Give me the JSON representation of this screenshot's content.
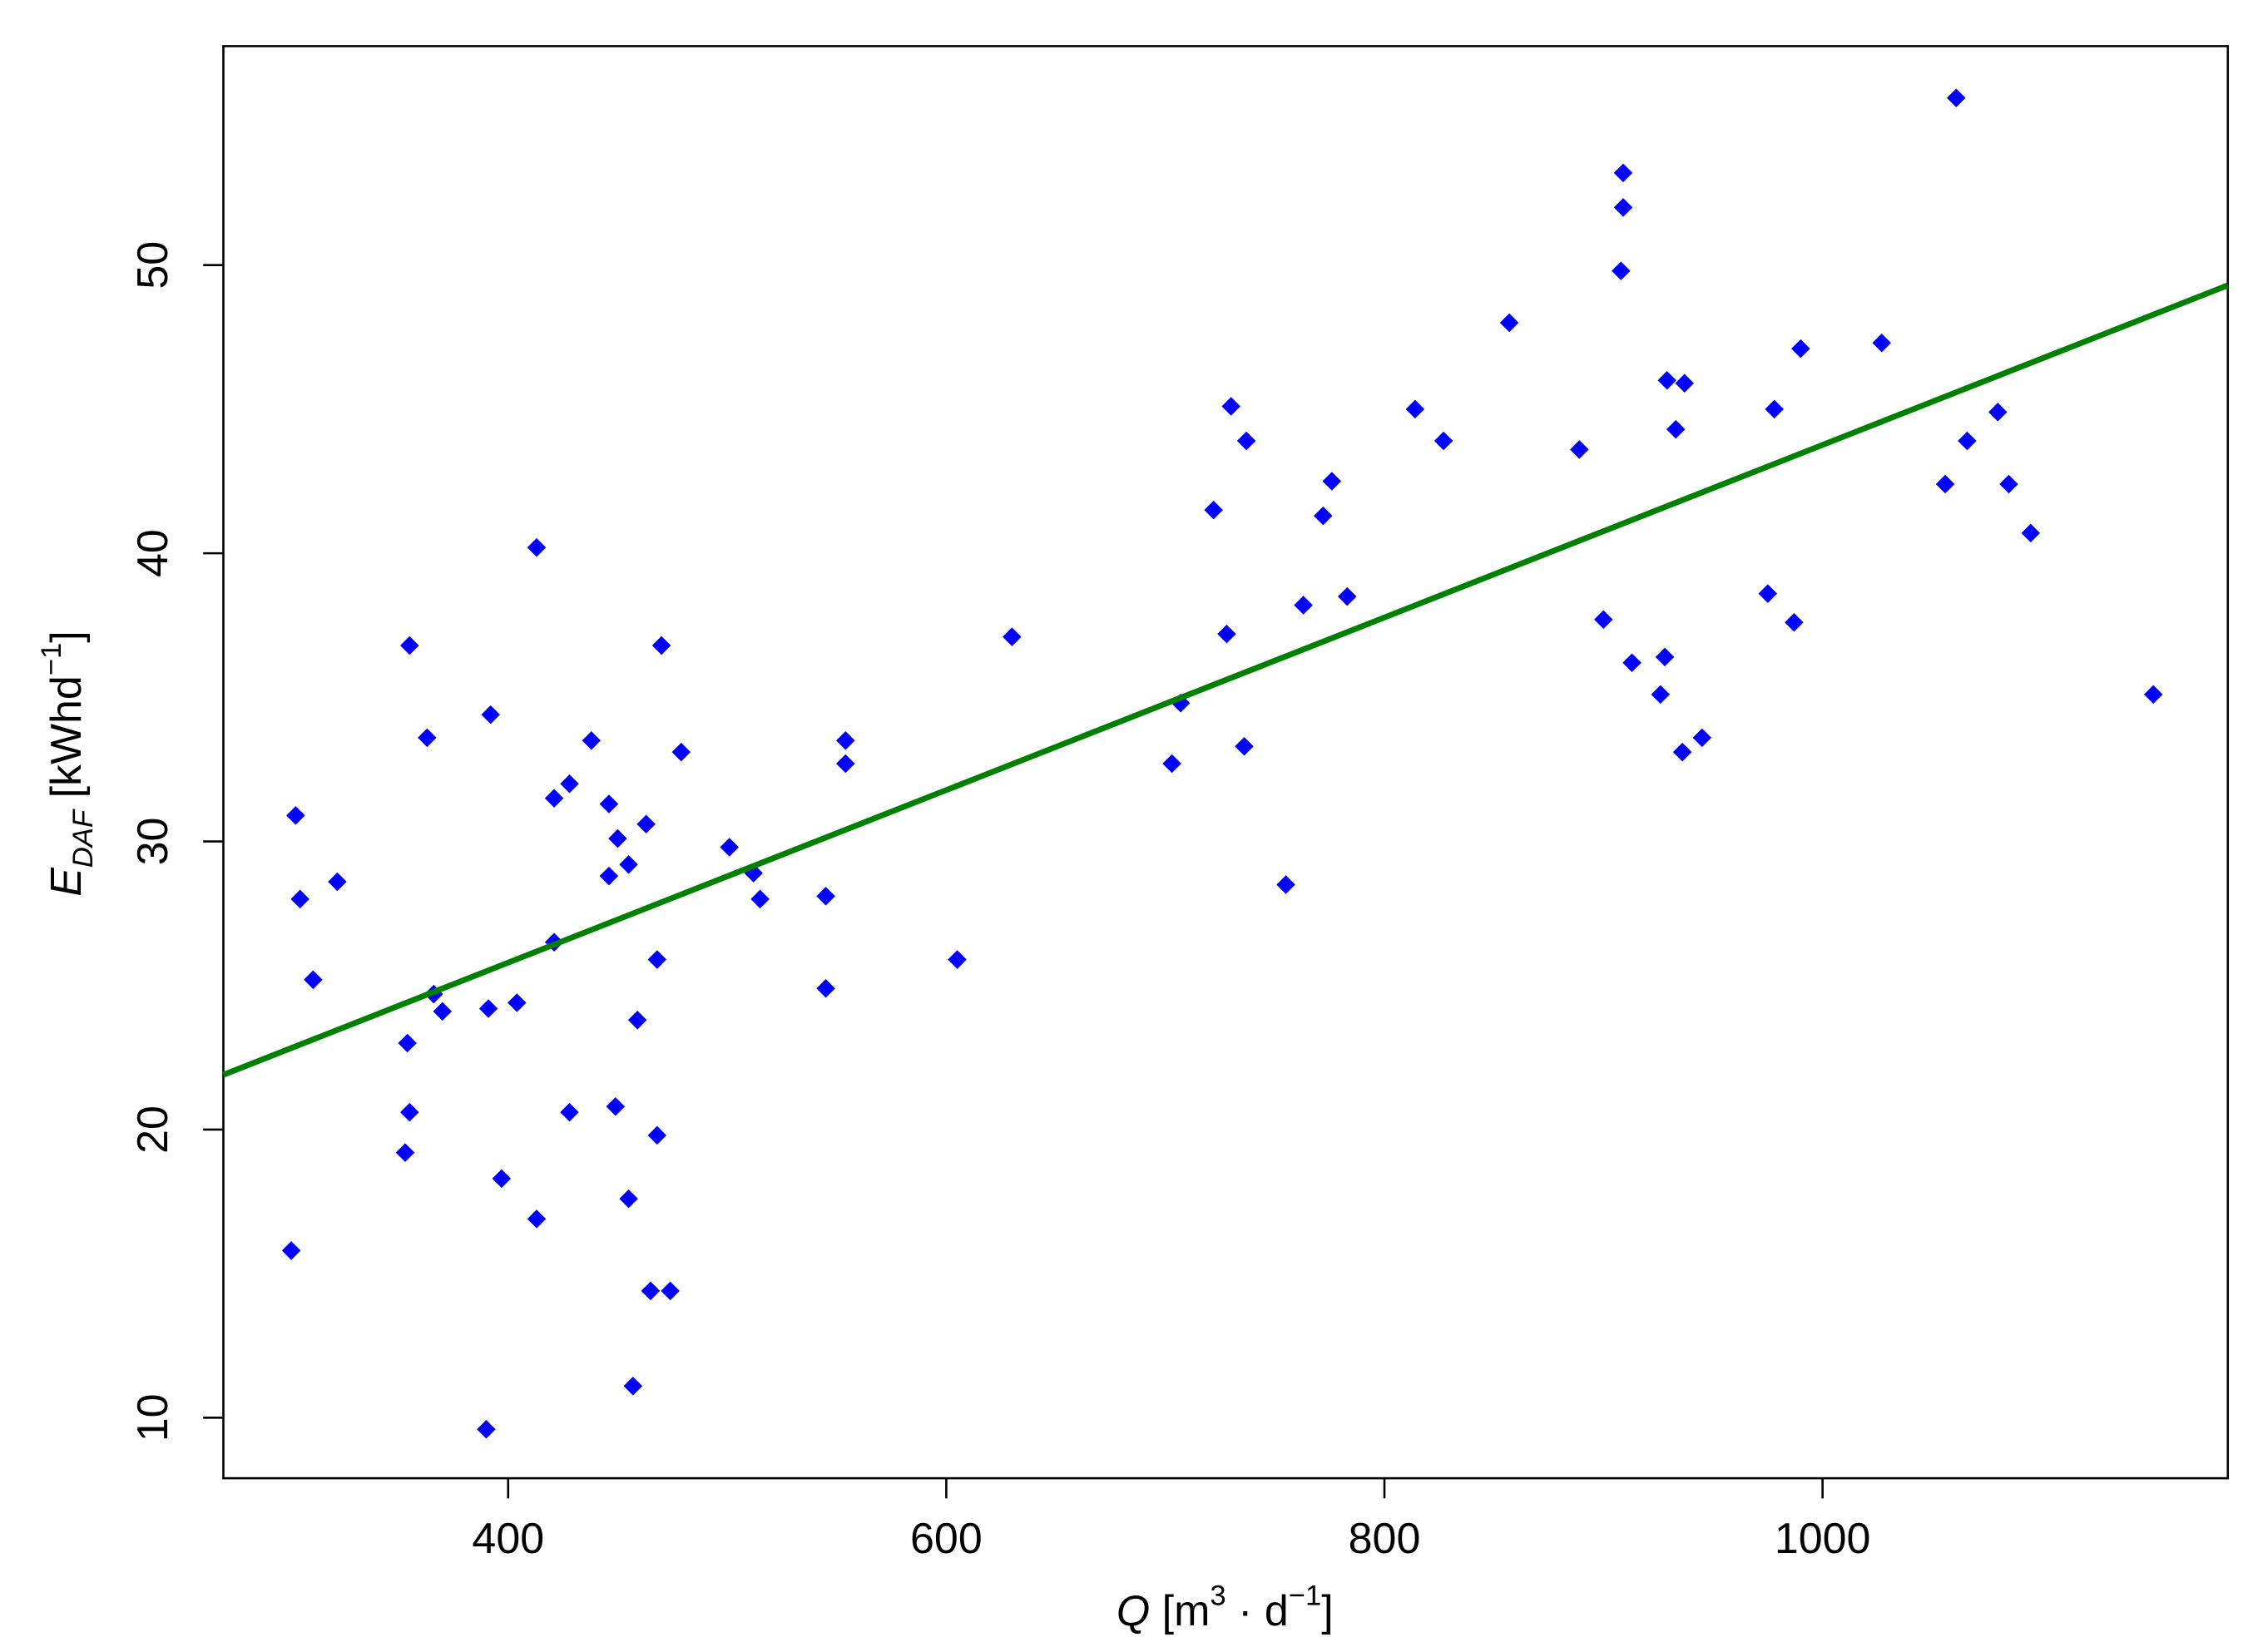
{
  "chart_data": {
    "type": "scatter",
    "x_label": {
      "symbol": "Q",
      "unit": "[m",
      "exponent": "3",
      "middle": " · d",
      "exponent2": "−1",
      "close": "]"
    },
    "y_label": {
      "symbol": "E",
      "subscript": "DAF",
      "unit": " [kWhd",
      "exponent": "−1",
      "close": "]"
    },
    "color": "#0000ff",
    "x": [
      303,
      305,
      311,
      322,
      301,
      355,
      363,
      354,
      355,
      353,
      366,
      370,
      392,
      391,
      404,
      397,
      413,
      421,
      421,
      428,
      428,
      413,
      390,
      438,
      446,
      450,
      446,
      455,
      463,
      449,
      470,
      479,
      468,
      459,
      468,
      455,
      465,
      474,
      457,
      501,
      512,
      515,
      554,
      554,
      545,
      545,
      605,
      630,
      703,
      707,
      722,
      730,
      737,
      728,
      736,
      755,
      763,
      772,
      776,
      783,
      814,
      827,
      857,
      889,
      900,
      909,
      909,
      908,
      913,
      929,
      937,
      933,
      928,
      926,
      936,
      945,
      978,
      990,
      975,
      987,
      1027,
      1061,
      1056,
      1066,
      1080,
      1085,
      1095,
      1151
    ],
    "values": [
      30.9,
      28.0,
      25.2,
      28.6,
      15.8,
      36.8,
      33.6,
      23.0,
      20.6,
      19.2,
      24.7,
      24.1,
      34.4,
      24.2,
      24.4,
      18.3,
      40.2,
      31.5,
      26.5,
      32.0,
      20.6,
      16.9,
      9.6,
      33.5,
      31.3,
      30.1,
      28.8,
      29.2,
      30.6,
      20.8,
      36.8,
      33.1,
      25.9,
      23.8,
      19.8,
      17.6,
      14.4,
      14.4,
      11.1,
      29.8,
      28.9,
      28.0,
      33.5,
      32.7,
      28.1,
      24.9,
      25.9,
      37.1,
      32.7,
      34.8,
      41.5,
      45.1,
      43.9,
      37.2,
      33.3,
      28.5,
      38.2,
      41.3,
      42.5,
      38.5,
      45.0,
      43.9,
      48.0,
      43.6,
      37.7,
      53.2,
      52.0,
      49.8,
      36.2,
      46.0,
      45.9,
      44.3,
      36.4,
      35.1,
      33.1,
      33.6,
      45.0,
      47.1,
      38.6,
      37.6,
      47.3,
      55.8,
      42.4,
      43.9,
      44.9,
      42.4,
      40.7,
      35.1
    ],
    "fit_line": {
      "x": [
        270,
        1185
      ],
      "values": [
        21.9,
        49.3
      ],
      "color": "#008000"
    },
    "xlim": [
      270,
      1185
    ],
    "ylim": [
      7.9,
      57.6
    ],
    "xticks": [
      400,
      600,
      800,
      1000
    ],
    "yticks": [
      10,
      20,
      30,
      40,
      50
    ]
  }
}
